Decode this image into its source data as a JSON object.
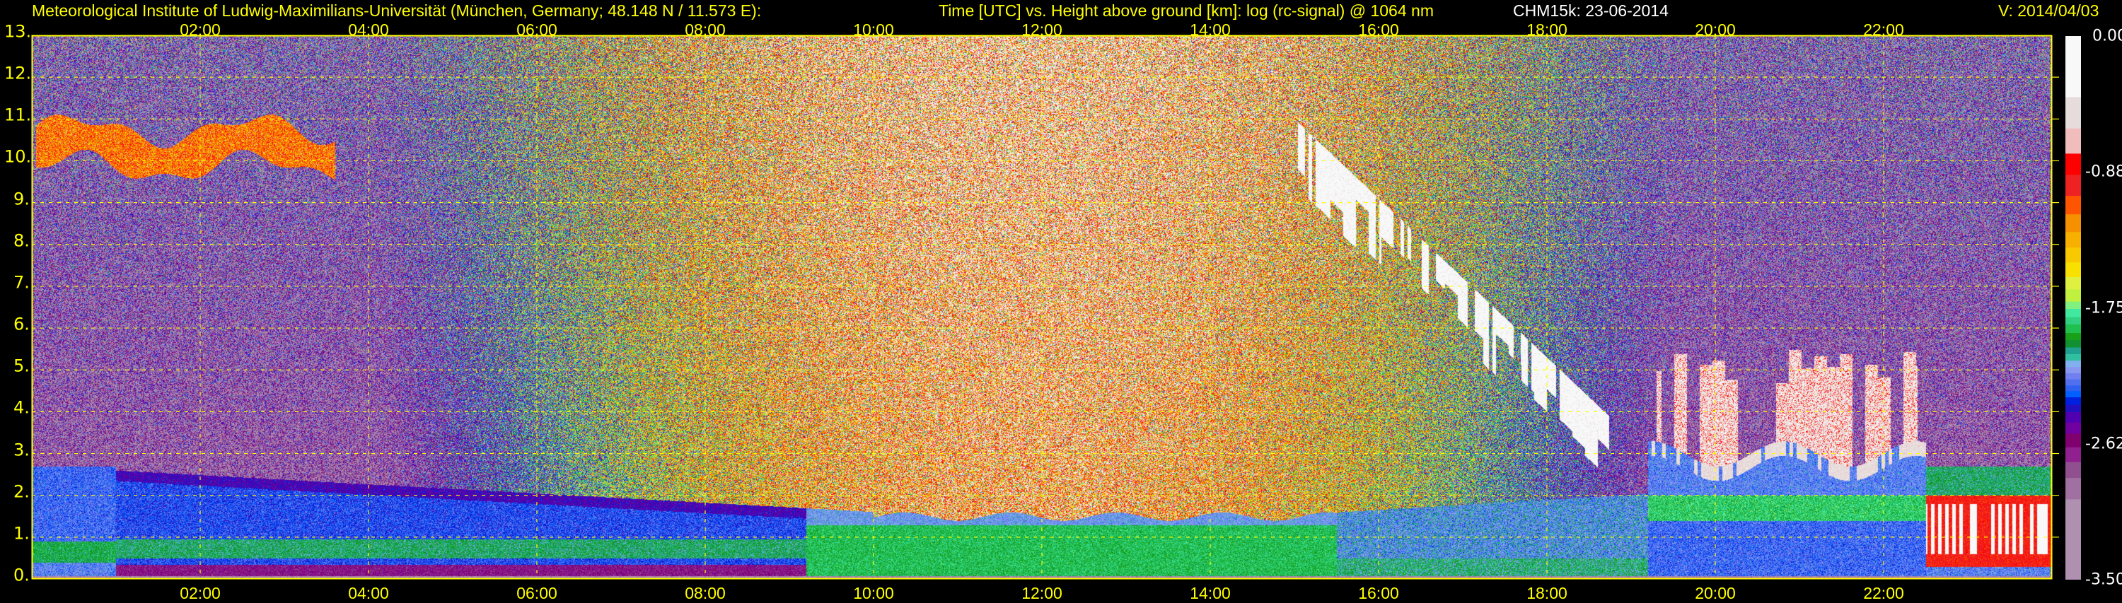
{
  "header": {
    "institute": "Meteorological Institute of Ludwig-Maximilians-Universität (München, Germany; 48.148 N / 11.573 E):",
    "description": "Time [UTC] vs. Height above ground [km]: log (rc-signal) @ 1064 nm",
    "instrument_date": "CHM15k: 23-06-2014",
    "version": "V: 2014/04/03"
  },
  "chart_data": {
    "type": "heatmap",
    "title": "Time [UTC] vs. Height above ground [km]: log (rc-signal) @ 1064 nm",
    "xlabel": "Time [UTC]",
    "ylabel": "Height above ground [km]",
    "xlim_hours": [
      0,
      24
    ],
    "ylim_km": [
      0,
      13
    ],
    "grid": true,
    "grid_color": "#ffff00",
    "x_ticks": [
      {
        "hour": 2,
        "label": "02:00"
      },
      {
        "hour": 4,
        "label": "04:00"
      },
      {
        "hour": 6,
        "label": "06:00"
      },
      {
        "hour": 8,
        "label": "08:00"
      },
      {
        "hour": 10,
        "label": "10:00"
      },
      {
        "hour": 12,
        "label": "12:00"
      },
      {
        "hour": 14,
        "label": "14:00"
      },
      {
        "hour": 16,
        "label": "16:00"
      },
      {
        "hour": 18,
        "label": "18:00"
      },
      {
        "hour": 20,
        "label": "20:00"
      },
      {
        "hour": 22,
        "label": "22:00"
      }
    ],
    "y_ticks": [
      {
        "km": 13,
        "label": "13."
      },
      {
        "km": 12,
        "label": "12."
      },
      {
        "km": 11,
        "label": "11."
      },
      {
        "km": 10,
        "label": "10."
      },
      {
        "km": 9,
        "label": "9."
      },
      {
        "km": 8,
        "label": "8."
      },
      {
        "km": 7,
        "label": "7."
      },
      {
        "km": 6,
        "label": "6."
      },
      {
        "km": 5,
        "label": "5."
      },
      {
        "km": 4,
        "label": "4."
      },
      {
        "km": 3,
        "label": "3."
      },
      {
        "km": 2,
        "label": "2."
      },
      {
        "km": 1,
        "label": "1."
      },
      {
        "km": 0,
        "label": "0."
      }
    ],
    "colorbar": {
      "range": [
        -3.5,
        0.0
      ],
      "ticks": [
        {
          "value": 0.0,
          "label": "0.00"
        },
        {
          "value": -0.875,
          "label": "-0.88"
        },
        {
          "value": -1.75,
          "label": "-1.75"
        },
        {
          "value": -2.625,
          "label": "-2.62"
        },
        {
          "value": -3.5,
          "label": "-3.50"
        }
      ],
      "levels": [
        {
          "min": -0.393,
          "color": "#f8f8f8"
        },
        {
          "min": -0.595,
          "color": "#e6dcdc"
        },
        {
          "min": -0.757,
          "color": "#f0bcbc"
        },
        {
          "min": -0.893,
          "color": "#ff0000"
        },
        {
          "min": -1.029,
          "color": "#ee2222"
        },
        {
          "min": -1.148,
          "color": "#ff5500"
        },
        {
          "min": -1.262,
          "color": "#f59000"
        },
        {
          "min": -1.362,
          "color": "#f8b000"
        },
        {
          "min": -1.457,
          "color": "#f8c800"
        },
        {
          "min": -1.552,
          "color": "#f8e000"
        },
        {
          "min": -1.631,
          "color": "#e0f040"
        },
        {
          "min": -1.71,
          "color": "#c0f040"
        },
        {
          "min": -1.757,
          "color": "#80f080"
        },
        {
          "min": -1.81,
          "color": "#40e8a0"
        },
        {
          "min": -1.857,
          "color": "#30d080"
        },
        {
          "min": -1.912,
          "color": "#20c050"
        },
        {
          "min": -1.957,
          "color": "#18a018"
        },
        {
          "min": -2.005,
          "color": "#109030"
        },
        {
          "min": -2.048,
          "color": "#20a090"
        },
        {
          "min": -2.09,
          "color": "#30c0a0"
        },
        {
          "min": -2.131,
          "color": "#80b0f0"
        },
        {
          "min": -2.171,
          "color": "#8898f0"
        },
        {
          "min": -2.21,
          "color": "#7080f0"
        },
        {
          "min": -2.25,
          "color": "#5070f0"
        },
        {
          "min": -2.286,
          "color": "#3060f0"
        },
        {
          "min": -2.326,
          "color": "#0060ff"
        },
        {
          "min": -2.374,
          "color": "#0020e0"
        },
        {
          "min": -2.421,
          "color": "#2010c0"
        },
        {
          "min": -2.488,
          "color": "#5000b0"
        },
        {
          "min": -2.56,
          "color": "#7000a0"
        },
        {
          "min": -2.648,
          "color": "#800070"
        },
        {
          "min": -2.743,
          "color": "#902090"
        },
        {
          "min": -2.845,
          "color": "#905090"
        },
        {
          "min": -2.983,
          "color": "#a070a0"
        },
        {
          "min": -3.5,
          "color": "#b090b0"
        }
      ]
    }
  }
}
